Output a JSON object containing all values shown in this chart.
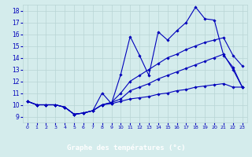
{
  "xlabel": "Graphe des températures (°c)",
  "background_color": "#d4ecec",
  "grid_color": "#b8d4d4",
  "line_color": "#0000bb",
  "xlabel_bg": "#3333aa",
  "xlabel_fg": "#ffffff",
  "x_ticks": [
    0,
    1,
    2,
    3,
    4,
    5,
    6,
    7,
    8,
    9,
    10,
    11,
    12,
    13,
    14,
    15,
    16,
    17,
    18,
    19,
    20,
    21,
    22,
    23
  ],
  "y_ticks": [
    9,
    10,
    11,
    12,
    13,
    14,
    15,
    16,
    17,
    18
  ],
  "xlim": [
    -0.5,
    23.5
  ],
  "ylim": [
    8.5,
    18.5
  ],
  "series": [
    {
      "name": "jagged_top",
      "x": [
        0,
        1,
        2,
        3,
        4,
        5,
        6,
        7,
        8,
        9,
        10,
        11,
        12,
        13,
        14,
        15,
        16,
        17,
        18,
        19,
        20,
        21,
        22,
        23
      ],
      "y": [
        10.3,
        10.0,
        10.0,
        10.0,
        9.8,
        9.2,
        9.3,
        9.5,
        11.0,
        10.1,
        12.6,
        15.8,
        14.2,
        12.5,
        16.2,
        15.5,
        16.3,
        17.0,
        18.3,
        17.3,
        17.2,
        14.2,
        13.2,
        11.5
      ]
    },
    {
      "name": "smooth_high",
      "x": [
        0,
        1,
        2,
        3,
        4,
        5,
        6,
        7,
        8,
        9,
        10,
        11,
        12,
        13,
        14,
        15,
        16,
        17,
        18,
        19,
        20,
        21,
        22,
        23
      ],
      "y": [
        10.3,
        10.0,
        10.0,
        10.0,
        9.8,
        9.2,
        9.3,
        9.5,
        10.0,
        10.2,
        11.0,
        12.0,
        12.5,
        13.0,
        13.5,
        14.0,
        14.3,
        14.7,
        15.0,
        15.3,
        15.5,
        15.7,
        14.2,
        13.3
      ]
    },
    {
      "name": "smooth_mid",
      "x": [
        0,
        1,
        2,
        3,
        4,
        5,
        6,
        7,
        8,
        9,
        10,
        11,
        12,
        13,
        14,
        15,
        16,
        17,
        18,
        19,
        20,
        21,
        22,
        23
      ],
      "y": [
        10.3,
        10.0,
        10.0,
        10.0,
        9.8,
        9.2,
        9.3,
        9.5,
        10.0,
        10.2,
        10.5,
        11.2,
        11.5,
        11.8,
        12.2,
        12.5,
        12.8,
        13.1,
        13.4,
        13.7,
        14.0,
        14.3,
        13.0,
        11.5
      ]
    },
    {
      "name": "flat_min",
      "x": [
        0,
        1,
        2,
        3,
        4,
        5,
        6,
        7,
        8,
        9,
        10,
        11,
        12,
        13,
        14,
        15,
        16,
        17,
        18,
        19,
        20,
        21,
        22,
        23
      ],
      "y": [
        10.3,
        10.0,
        10.0,
        10.0,
        9.8,
        9.2,
        9.3,
        9.5,
        10.0,
        10.1,
        10.3,
        10.5,
        10.6,
        10.7,
        10.9,
        11.0,
        11.2,
        11.3,
        11.5,
        11.6,
        11.7,
        11.8,
        11.5,
        11.5
      ]
    }
  ]
}
